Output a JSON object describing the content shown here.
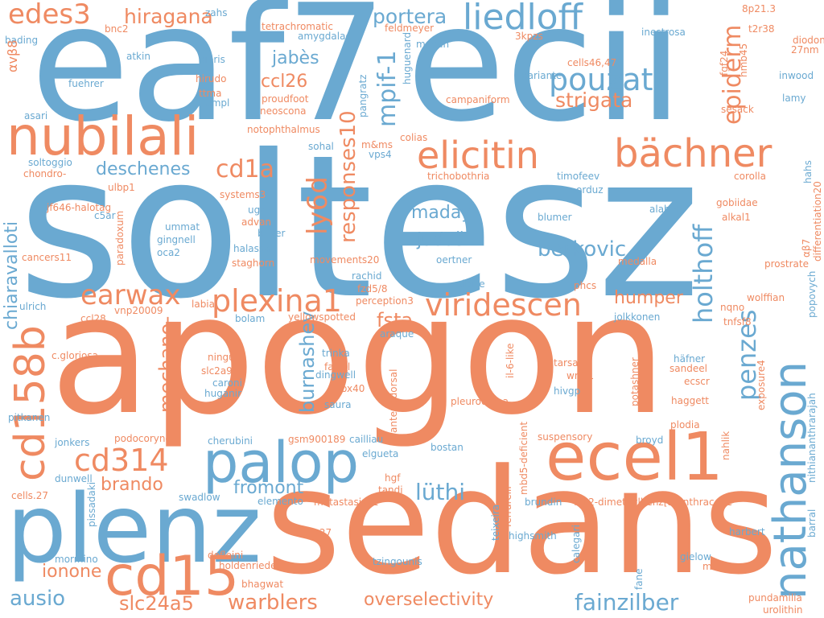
{
  "colors": {
    "blue": "#6aa9d1",
    "orange": "#ef8a62"
  },
  "words": {
    "soltesz": "soltesz",
    "apogon": "apogon",
    "sedans": "sedans",
    "eaf7": "eaf7",
    "ecii": "ecii",
    "plenz": "plenz",
    "nubilali": "nubilali",
    "palop": "palop",
    "ecel1": "ecel1",
    "cd15": "cd15",
    "nathanson": "nathanson",
    "cd158b": "cd158b",
    "elicitin": "elicitin",
    "bachner": "bächner",
    "liedloff": "liedloff",
    "pouzat": "pouzat",
    "viridescen": "viridescen",
    "plexina1": "plexina1",
    "cd314": "cd314",
    "earwax": "earwax",
    "edes3": "edes3",
    "hiragana": "hiragana",
    "portera": "portera",
    "strigata": "strigata",
    "epiderm": "epiderm",
    "holthoff": "holthoff",
    "berkovic": "berkovic",
    "penzes": "penzes",
    "humper": "humper",
    "maday": "maday",
    "judas": "judaš",
    "responses10": "responses10",
    "ly6d": "ly6d",
    "mpif1": "mpif-1",
    "cd1a": "cd1a",
    "deschenes": "deschenes",
    "ccl26": "ccl26",
    "jabes": "jabès",
    "fsta": "fsta",
    "burnashev": "burnashev",
    "mechano": "mechano-",
    "chiaravalloti": "chiaravalloti",
    "brando": "brando",
    "fromont": "fromont",
    "luthi": "lüthi",
    "ionone": "ionone",
    "ausio": "ausio",
    "slc24a5": "slc24a5",
    "warblers": "warblers",
    "overselectivity": "overselectivity",
    "fainzilber": "fainzilber",
    "zahs": "zahs",
    "p8p213": "8p21.3",
    "t2r38": "t2r38",
    "diodon": "diodon",
    "n27nm": "27nm",
    "inestrosa": "inestrosa",
    "fgf24": "fgf24",
    "hmb45": "hmb45",
    "inwood": "inwood",
    "lamy": "lamy",
    "sesack": "sesack",
    "cells4647": "cells46,47",
    "n3kpzs": "3kpzs",
    "pariante": "pariante",
    "campaniform": "campaniform",
    "huguenard": "huguenard",
    "mavan": "mavan",
    "feldmeyer": "feldmeyer",
    "tetrachromatic": "tetrachromatic",
    "amygdalae": "amygdalae",
    "pieris": "pieris",
    "hirudo": "hirudo",
    "ttma": "ttma",
    "lampl": "lampl",
    "proudfoot": "proudfoot",
    "neoscona": "neoscona",
    "notophthalmus": "notophthalmus",
    "pangratz": "pangratz",
    "bnc2": "bnc2",
    "bading": "bading",
    "avb8": "αvβ8",
    "atkin": "atkin",
    "fuehrer": "fuehrer",
    "asari": "asari",
    "soltoggio": "soltoggio",
    "chondro": "chondro-",
    "jf646": "jf646-halotag",
    "c5ar": "c5ar",
    "ulbp1": "ulbp1",
    "systems3": "systems3",
    "ugale": "ugale",
    "advan": "advan",
    "beyer": "beyer",
    "ummat": "ummat",
    "gingnell": "gingnell",
    "oca2": "oca2",
    "halassa": "halassa",
    "staghorn": "staghorn",
    "cancers11": "cancers11",
    "paradoxum": "paradoxum",
    "movements20": "movements20",
    "rachid": "rachid",
    "fzd58": "fzd5/8",
    "perception3": "perception3",
    "yellowspotted": "yellowspotted",
    "araque": "araque",
    "sohal": "sohal",
    "mms": "m&ms",
    "vps4": "vps4",
    "colias": "colias",
    "trichobothria": "trichobothria",
    "timofeev": "timofeev",
    "orduz": "orduz",
    "blumer": "blumer",
    "alabert": "alabert",
    "corolla": "corolla",
    "gobiidae": "gobiidae",
    "alkal1": "alkal1",
    "hahs": "hahs",
    "differentiation20": "differentiation20",
    "ab7": "αβ7",
    "prostrate": "prostrate",
    "popovych": "popovych",
    "wolffian": "wolffian",
    "nqno": "nqno",
    "tnfsf8": "tnfsf8",
    "jolkkonen": "jolkkonen",
    "medalla": "medalla",
    "oertner": "oertner",
    "sibille": "sibille",
    "phcs": "phcs",
    "ulrich": "ulrich",
    "ccl28": "ccl28",
    "vnp20009": "vnp20009",
    "labial": "labial",
    "bolam": "bolam",
    "cgloriosa": "c.gloriosa",
    "ningu": "ningu",
    "slc2a9": "slc2a9",
    "caroni": "caroni",
    "huganir": "huganir",
    "trinka": "trinka",
    "facial": "facial",
    "dingwell": "dingwell",
    "ox40": "ox40",
    "saura": "saura",
    "anteriodorsal": "anteriodorsal",
    "il6like": "il-6-like",
    "tarsal": "tarsal",
    "wnt1": "wnt-1",
    "hivgp": "hivgp",
    "pleurodema": "pleurodema",
    "potashner": "potashner",
    "hafner": "häfner",
    "sandeel": "sandeel",
    "ecscr": "ecscr",
    "haggett": "haggett",
    "plodia": "plodia",
    "exposure4": "exposure4",
    "nithiananthar": "nithiananthrarajah",
    "pitkanen": "pitkanen",
    "jonkers": "jonkers",
    "podocoryne": "podocoryne",
    "cherubini": "cherubini",
    "gsm900189": "gsm900189",
    "cailliau": "cailliau",
    "elgueta": "elgueta",
    "bostan": "bostan",
    "suspensory": "suspensory",
    "broyd": "broyd",
    "nahlik": "nahlik",
    "dunwell": "dunwell",
    "hgf": "hgf",
    "ferrarelli": "ferrarelli",
    "teixeira": "teixeira",
    "mbd5": "mbd5-deficient",
    "tandi": "tandi",
    "swadlow": "swadlow",
    "elemento": "elemento",
    "metastasis21": "metastasis21",
    "brundin": "brundin",
    "dmba": "7,12-dimethylbenz[a]anthracene",
    "barral": "barral",
    "cells27a": "cells.27",
    "pissadaki": "pissadaki",
    "cells27": "cells27",
    "highsmith": "highsmith",
    "calegari": "calegari",
    "harbert": "harbert",
    "mormino": "mormino",
    "dofleini": "dofleini",
    "holdenrieder": "holdenrieder",
    "tzingounis": "tzingounis",
    "gielow": "gielow",
    "mucke": "mucke",
    "bhagwat": "bhagwat",
    "fane": "fane",
    "pundamilia": "pundamilia",
    "urolithin": "urolithin"
  }
}
